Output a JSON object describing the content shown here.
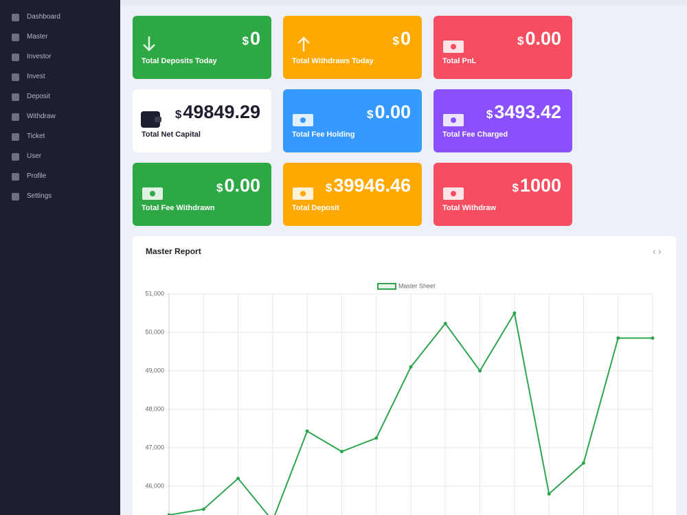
{
  "sidebar": {
    "items": [
      "Dashboard",
      "Master",
      "Investor",
      "Invest",
      "Deposit",
      "Withdraw",
      "Ticket",
      "User",
      "Profile",
      "Settings"
    ]
  },
  "cards": [
    {
      "currency": "$",
      "amount": "0",
      "label": "Total Deposits Today"
    },
    {
      "currency": "$",
      "amount": "0",
      "label": "Total Withdraws Today"
    },
    {
      "currency": "$",
      "amount": "0.00",
      "label": "Total PnL"
    },
    {
      "currency": "$",
      "amount": "49849.29",
      "label": "Total Net Capital"
    },
    {
      "currency": "$",
      "amount": "0.00",
      "label": "Total Fee Holding"
    },
    {
      "currency": "$",
      "amount": "3493.42",
      "label": "Total Fee Charged"
    },
    {
      "currency": "$",
      "amount": "0.00",
      "label": "Total Fee Withdrawn"
    },
    {
      "currency": "$",
      "amount": "39946.46",
      "label": "Total Deposit"
    },
    {
      "currency": "$",
      "amount": "1000",
      "label": "Total Withdraw"
    }
  ],
  "panel": {
    "title": "Master Report"
  },
  "chart_data": {
    "type": "line",
    "categories": [
      null,
      null,
      null,
      null,
      null,
      null,
      null,
      null,
      null,
      null,
      null,
      null,
      null,
      null,
      null
    ],
    "series": [
      {
        "name": "Master Sheet",
        "color": "#2ea44f",
        "values": [
          45250,
          45400,
          46200,
          45100,
          47430,
          46900,
          47250,
          49100,
          50230,
          49000,
          50500,
          45800,
          46600,
          49850,
          49850
        ]
      }
    ],
    "ylim": [
      45250,
      51000
    ],
    "yticks": [
      {
        "value": 46000,
        "label": "46,000"
      },
      {
        "value": 47000,
        "label": "47,000"
      },
      {
        "value": 48000,
        "label": "48,000"
      },
      {
        "value": 49000,
        "label": "49,000"
      },
      {
        "value": 50000,
        "label": "50,000"
      },
      {
        "value": 51000,
        "label": "51,000"
      }
    ],
    "grid": true,
    "legend": "top"
  }
}
